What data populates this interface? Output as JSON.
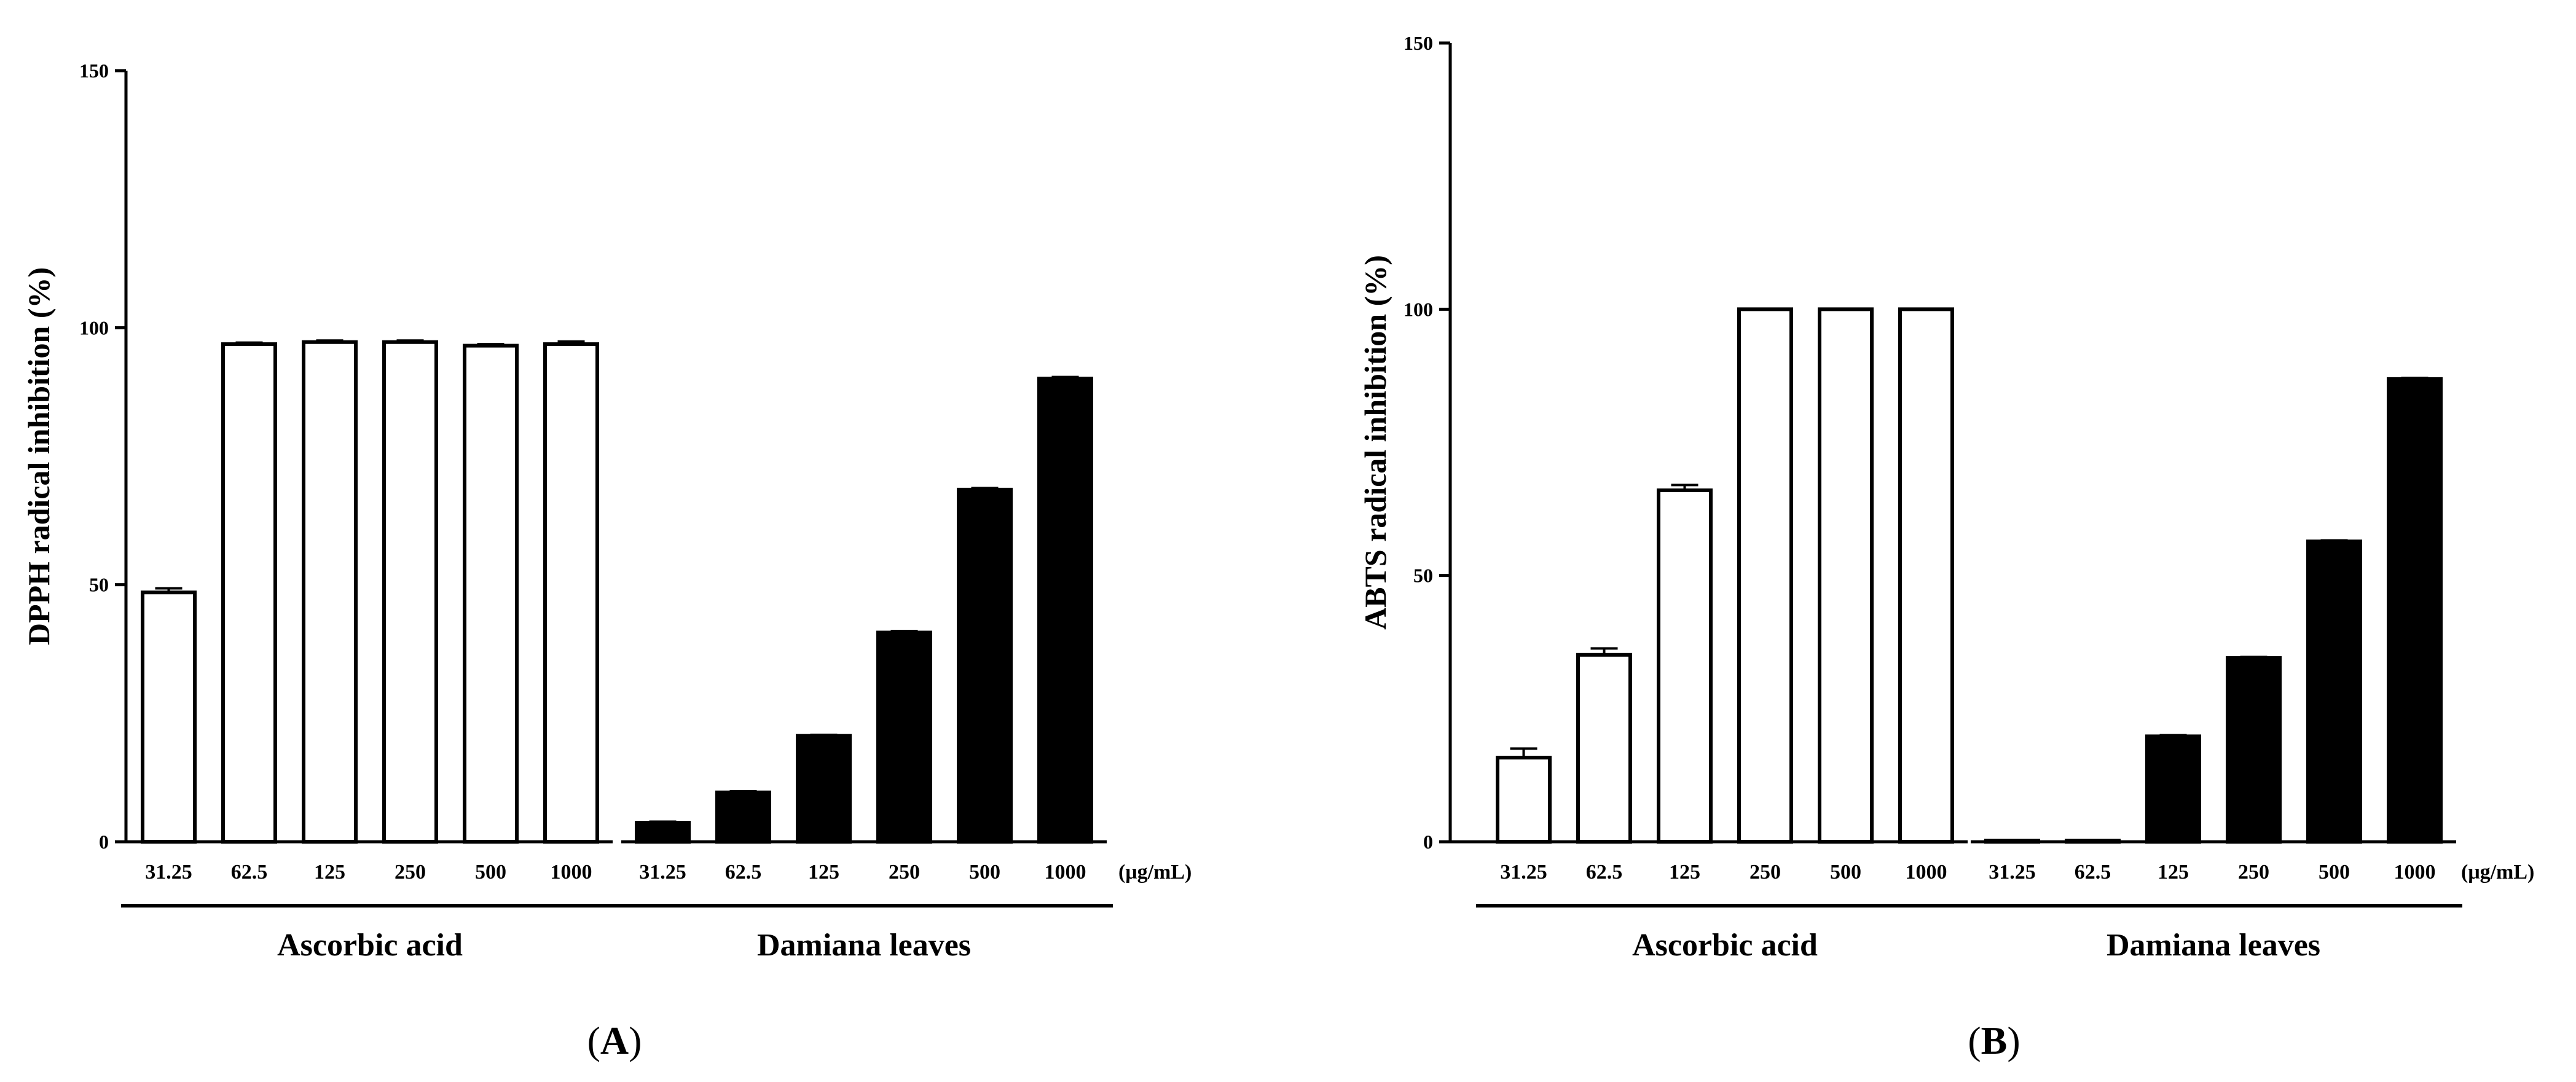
{
  "chart_data": [
    {
      "type": "bar",
      "panel": "A",
      "panel_label": {
        "open": "(",
        "letter": "A",
        "close": ")"
      },
      "ylabel": "DPPH radical inhibition (%)",
      "ylim": [
        0,
        150
      ],
      "yticks": [
        "0",
        "50",
        "100",
        "150"
      ],
      "unit_label": "(μg/mL)",
      "groups": [
        {
          "name": "Ascorbic acid",
          "fill": "#ffffff",
          "categories": [
            "31.25",
            "62.5",
            "125",
            "250",
            "500",
            "1000"
          ],
          "values": [
            48.5,
            96.8,
            97.2,
            97.2,
            96.5,
            96.8
          ],
          "errors": [
            0.8,
            0.3,
            0.3,
            0.3,
            0.3,
            0.5
          ]
        },
        {
          "name": "Damiana leaves",
          "fill": "#000000",
          "categories": [
            "31.25",
            "62.5",
            "125",
            "250",
            "500",
            "1000"
          ],
          "values": [
            3.7,
            9.6,
            20.6,
            40.7,
            68.5,
            90.1
          ],
          "errors": [
            0.2,
            0.2,
            0.2,
            0.3,
            0.3,
            0.3
          ]
        }
      ]
    },
    {
      "type": "bar",
      "panel": "B",
      "panel_label": {
        "open": "(",
        "letter": "B",
        "close": ")"
      },
      "ylabel": "ABTS radical inhibition (%)",
      "ylim": [
        0,
        150
      ],
      "yticks": [
        "0",
        "50",
        "100",
        "150"
      ],
      "unit_label": "(μg/mL)",
      "groups": [
        {
          "name": "Ascorbic acid",
          "fill": "#ffffff",
          "categories": [
            "31.25",
            "62.5",
            "125",
            "250",
            "500",
            "1000"
          ],
          "values": [
            15.8,
            35.1,
            66.0,
            100.0,
            100.0,
            100.0
          ],
          "errors": [
            1.7,
            1.2,
            1.0,
            0,
            0,
            0
          ]
        },
        {
          "name": "Damiana leaves",
          "fill": "#000000",
          "categories": [
            "31.25",
            "62.5",
            "125",
            "250",
            "500",
            "1000"
          ],
          "values": [
            0.2,
            0.2,
            19.8,
            34.5,
            56.4,
            86.9
          ],
          "errors": [
            0,
            0,
            0.2,
            0.2,
            0.2,
            0.2
          ]
        }
      ]
    }
  ]
}
